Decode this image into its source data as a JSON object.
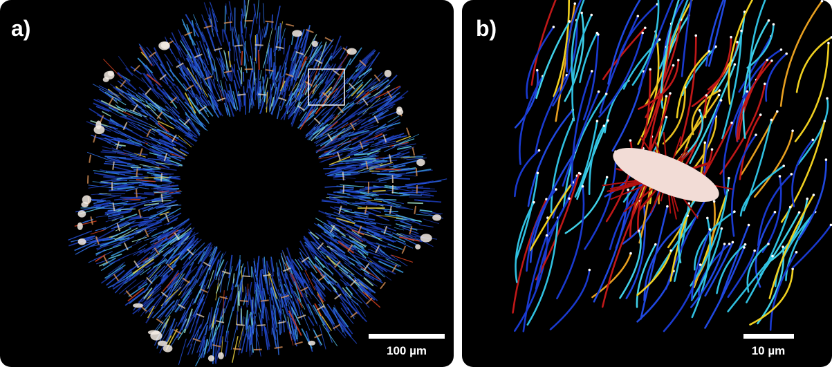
{
  "figure": {
    "panels": [
      {
        "label": "a)",
        "scale_bar": "100 µm"
      },
      {
        "label": "b)",
        "scale_bar": "10 µm"
      }
    ]
  }
}
